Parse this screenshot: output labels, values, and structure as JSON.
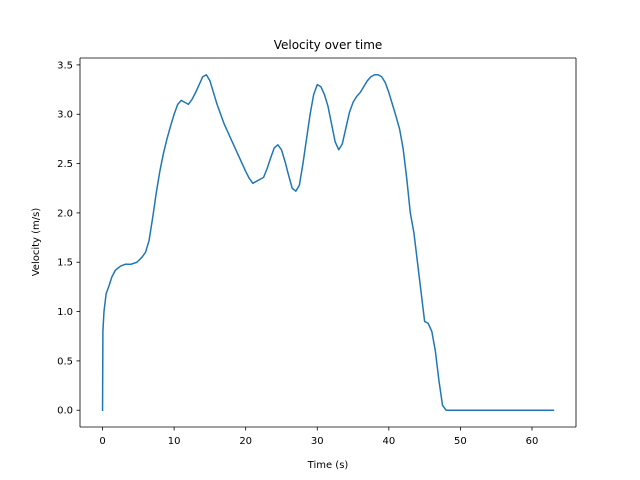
{
  "chart_data": {
    "type": "line",
    "title": "Velocity over time",
    "xlabel": "Time (s)",
    "ylabel": "Velocity (m/s)",
    "xlim": [
      -3.15,
      66.15
    ],
    "ylim": [
      -0.17,
      3.57
    ],
    "x_ticks": [
      0,
      10,
      20,
      30,
      40,
      50,
      60
    ],
    "y_ticks": [
      0.0,
      0.5,
      1.0,
      1.5,
      2.0,
      2.5,
      3.0,
      3.5
    ],
    "x_tick_labels": [
      "0",
      "10",
      "20",
      "30",
      "40",
      "50",
      "60"
    ],
    "y_tick_labels": [
      "0.0",
      "0.5",
      "1.0",
      "1.5",
      "2.0",
      "2.5",
      "3.0",
      "3.5"
    ],
    "grid": false,
    "series": [
      {
        "name": "velocity",
        "color": "#1f77b4",
        "x": [
          0,
          0.05,
          0.2,
          0.5,
          0.9,
          1.3,
          1.8,
          2.5,
          3.2,
          4.0,
          4.8,
          5.5,
          6.0,
          6.5,
          7.0,
          7.5,
          8.0,
          8.5,
          9.0,
          9.5,
          10.0,
          10.5,
          11.0,
          11.5,
          12.0,
          12.5,
          13.0,
          13.5,
          14.0,
          14.5,
          15.0,
          15.5,
          16.0,
          16.5,
          17.0,
          17.5,
          18.0,
          18.5,
          19.0,
          19.5,
          20.0,
          20.5,
          21.0,
          21.5,
          22.0,
          22.5,
          23.0,
          23.5,
          24.0,
          24.5,
          25.0,
          25.5,
          26.0,
          26.5,
          27.0,
          27.5,
          28.0,
          28.5,
          29.0,
          29.5,
          30.0,
          30.5,
          31.0,
          31.5,
          32.0,
          32.5,
          33.0,
          33.5,
          34.0,
          34.5,
          35.0,
          35.5,
          36.0,
          36.5,
          37.0,
          37.5,
          38.0,
          38.5,
          39.0,
          39.5,
          40.0,
          40.5,
          41.0,
          41.5,
          42.0,
          42.5,
          43.0,
          43.5,
          44.0,
          44.5,
          45.0,
          45.5,
          46.0,
          46.5,
          47.0,
          47.5,
          48.0,
          48.5,
          49.0,
          49.6,
          49.0,
          50.0,
          52.0,
          55.0,
          58.0,
          61.0,
          63.0
        ],
        "y": [
          0.0,
          0.8,
          1.0,
          1.18,
          1.26,
          1.35,
          1.42,
          1.46,
          1.48,
          1.48,
          1.5,
          1.55,
          1.6,
          1.72,
          1.95,
          2.2,
          2.42,
          2.6,
          2.75,
          2.88,
          3.0,
          3.1,
          3.14,
          3.12,
          3.1,
          3.15,
          3.22,
          3.3,
          3.38,
          3.4,
          3.34,
          3.22,
          3.1,
          3.0,
          2.9,
          2.82,
          2.74,
          2.66,
          2.58,
          2.5,
          2.42,
          2.35,
          2.3,
          2.32,
          2.34,
          2.36,
          2.45,
          2.56,
          2.66,
          2.69,
          2.64,
          2.52,
          2.38,
          2.25,
          2.22,
          2.28,
          2.5,
          2.75,
          3.0,
          3.2,
          3.3,
          3.28,
          3.2,
          3.08,
          2.9,
          2.72,
          2.64,
          2.7,
          2.86,
          3.02,
          3.12,
          3.18,
          3.22,
          3.28,
          3.34,
          3.38,
          3.4,
          3.4,
          3.38,
          3.32,
          3.22,
          3.1,
          2.98,
          2.85,
          2.65,
          2.35,
          2.0,
          1.8,
          1.5,
          1.2,
          0.9,
          0.88,
          0.8,
          0.6,
          0.3,
          0.05,
          0.0,
          0.0,
          0.0,
          0.0,
          0.0,
          0.0,
          0.0,
          0.0,
          0.0,
          0.0,
          0.0
        ]
      }
    ]
  }
}
